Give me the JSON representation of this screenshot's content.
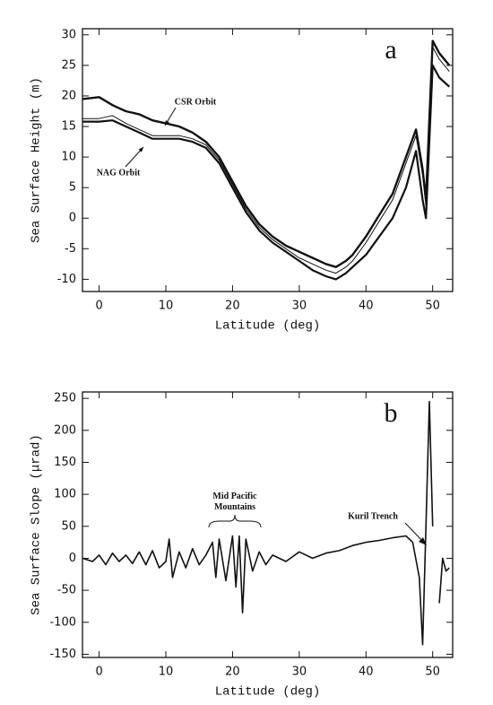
{
  "chart_data": [
    {
      "type": "line",
      "annotations": [
        "a"
      ],
      "x_label": "Latitude (deg)",
      "y_label": "Sea Surface Height (m)",
      "x": [
        -2.5,
        0,
        2,
        4,
        6,
        8,
        10,
        12,
        14,
        16,
        18,
        20,
        22,
        24,
        26,
        28,
        30,
        32,
        34,
        35.5,
        37,
        38,
        40,
        42,
        44,
        46,
        47.5,
        48.5,
        49,
        50,
        51,
        52.5
      ],
      "series": [
        {
          "name": "CSR Orbit",
          "color": "#111111",
          "values": [
            19.5,
            19.8,
            18.5,
            17.5,
            17,
            16,
            15.5,
            15,
            14,
            12.5,
            10,
            6,
            2,
            -1,
            -3,
            -4.5,
            -5.5,
            -6.5,
            -7.5,
            -8,
            -7,
            -6,
            -3,
            0.5,
            4,
            10,
            14.5,
            8,
            3,
            29,
            27,
            25
          ]
        },
        {
          "name": "NAG Orbit",
          "color": "#111111",
          "values": [
            16.3,
            16.3,
            16.8,
            15.5,
            14.5,
            13.5,
            13.5,
            13.5,
            13,
            12,
            9.5,
            5.5,
            1.5,
            -1.5,
            -3.5,
            -5,
            -6.5,
            -7.5,
            -8.5,
            -9,
            -8,
            -7,
            -4,
            -0.5,
            3,
            9,
            13.5,
            7,
            2,
            28,
            26,
            24
          ]
        },
        {
          "color": "#111111",
          "values": [
            15.8,
            15.8,
            16,
            15,
            14,
            13,
            13,
            13,
            12.5,
            11.5,
            9,
            5,
            1,
            -2,
            -4,
            -5.5,
            -7,
            -8.5,
            -9.5,
            -10,
            -9,
            -8,
            -6,
            -3,
            0,
            5,
            11,
            3,
            0,
            25,
            23,
            21.5
          ]
        }
      ],
      "xlim": [
        -2.5,
        53
      ],
      "xticks": [
        0,
        10,
        20,
        30,
        40,
        50
      ],
      "ylim": [
        -12,
        31
      ],
      "yticks": [
        -10,
        -5,
        0,
        5,
        10,
        15,
        20,
        25,
        30
      ]
    },
    {
      "type": "line",
      "annotations": [
        "b",
        "Mid Pacific Mountains",
        "Kuril Trench"
      ],
      "x_label": "Latitude (deg)",
      "y_label": "Sea Surface Slope (μrad)",
      "x": [
        -2.5,
        -1,
        0,
        1,
        2,
        3,
        4,
        5,
        6,
        7,
        8,
        9,
        10,
        10.5,
        11,
        12,
        13,
        14,
        15,
        16,
        17,
        17.5,
        18,
        19,
        20,
        20.5,
        21,
        21.5,
        22,
        23,
        24,
        25,
        26,
        28,
        30,
        32,
        34,
        36,
        38,
        40,
        42,
        44,
        46,
        47,
        48,
        48.5,
        49,
        49.5,
        50,
        50.5,
        51,
        51.5,
        52,
        52.5
      ],
      "values": [
        0,
        -5,
        5,
        -10,
        8,
        -5,
        5,
        -8,
        10,
        -10,
        12,
        -15,
        -5,
        30,
        -30,
        10,
        -15,
        15,
        -10,
        5,
        25,
        -30,
        30,
        -35,
        35,
        -45,
        35,
        -85,
        30,
        -20,
        10,
        -10,
        5,
        -5,
        10,
        0,
        8,
        12,
        20,
        25,
        28,
        32,
        35,
        25,
        -30,
        -135,
        50,
        245,
        50,
        null,
        -70,
        0,
        -20,
        -15
      ],
      "color": "#111111",
      "xlim": [
        -2.5,
        53
      ],
      "xticks": [
        0,
        10,
        20,
        30,
        40,
        50
      ],
      "ylim": [
        -155,
        260
      ],
      "yticks": [
        -150,
        -100,
        -50,
        0,
        50,
        100,
        150,
        200,
        250
      ]
    }
  ]
}
